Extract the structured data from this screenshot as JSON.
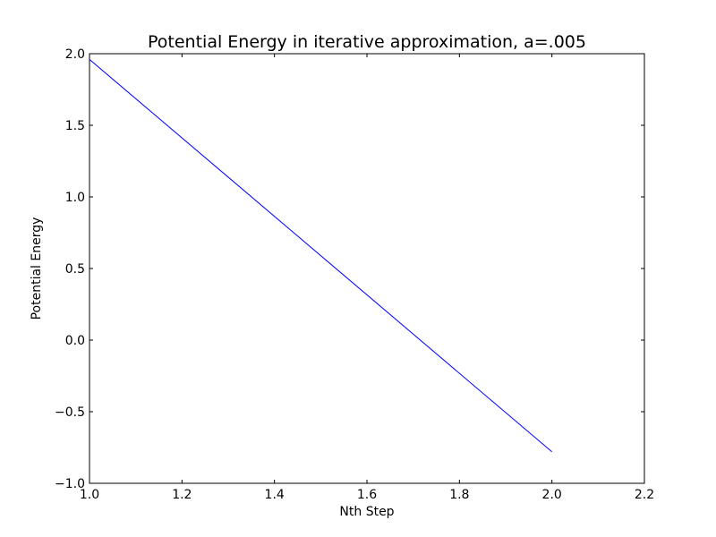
{
  "chart_data": {
    "type": "line",
    "title": "Potential Energy in iterative approximation, a=.005",
    "xlabel": "Nth Step",
    "ylabel": "Potential Energy",
    "xlim": [
      1.0,
      2.2
    ],
    "ylim": [
      -1.0,
      2.0
    ],
    "x_ticks": [
      1.0,
      1.2,
      1.4,
      1.6,
      1.8,
      2.0,
      2.2
    ],
    "x_tick_labels": [
      "1.0",
      "1.2",
      "1.4",
      "1.6",
      "1.8",
      "2.0",
      "2.2"
    ],
    "y_ticks": [
      -1.0,
      -0.5,
      0.0,
      0.5,
      1.0,
      1.5,
      2.0
    ],
    "y_tick_labels": [
      "−1.0",
      "−0.5",
      "0.0",
      "0.5",
      "1.0",
      "1.5",
      "2.0"
    ],
    "grid": false,
    "series": [
      {
        "color": "#0000ff",
        "x": [
          1.0,
          2.0
        ],
        "y": [
          1.96,
          -0.78
        ]
      }
    ]
  }
}
